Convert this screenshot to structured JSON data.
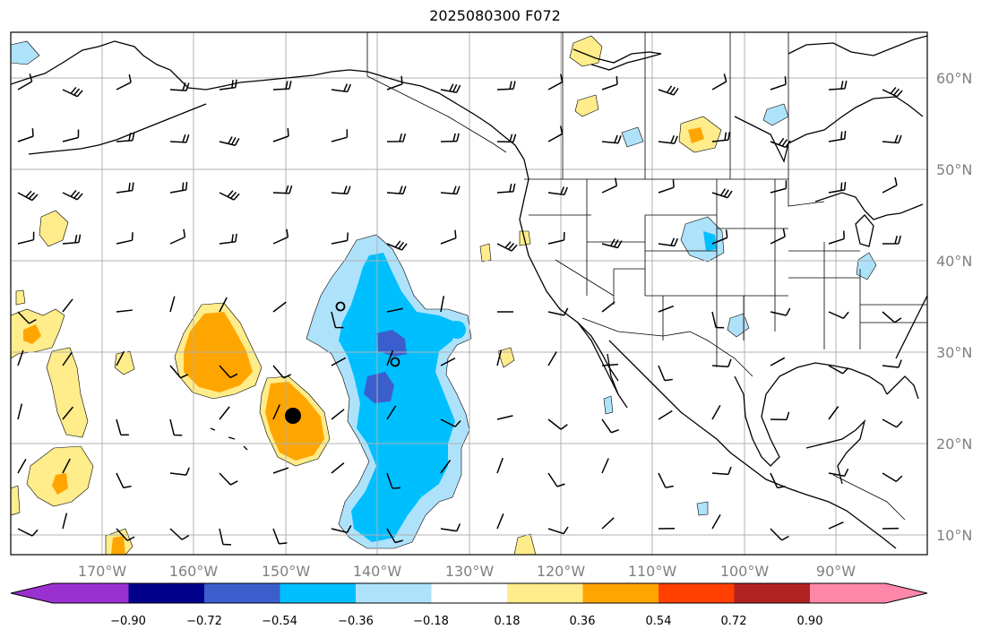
{
  "title": "2025080300 F072",
  "lat_labels": [
    "60°N",
    "50°N",
    "40°N",
    "30°N",
    "20°N",
    "10°N"
  ],
  "lon_labels": [
    "170°W",
    "160°W",
    "150°W",
    "140°W",
    "130°W",
    "120°W",
    "110°W",
    "100°W",
    "90°W"
  ],
  "colorbar": {
    "labels": [
      "−0.90",
      "−0.72",
      "−0.54",
      "−0.36",
      "−0.18",
      "0.18",
      "0.36",
      "0.54",
      "0.72",
      "0.90"
    ],
    "colors": [
      "#9b30d0",
      "#00008b",
      "#3a5fcd",
      "#00bfff",
      "#aee2fb",
      "#ffffff",
      "#ffec8b",
      "#ffa500",
      "#ff4000",
      "#b22222",
      "#ff88aa"
    ]
  },
  "field_colors": {
    "neg_light": "#aee2fb",
    "neg_mid": "#00bfff",
    "neg_dark": "#3a5fcd",
    "pos_light": "#ffec8b",
    "pos_mid": "#ffa500"
  }
}
